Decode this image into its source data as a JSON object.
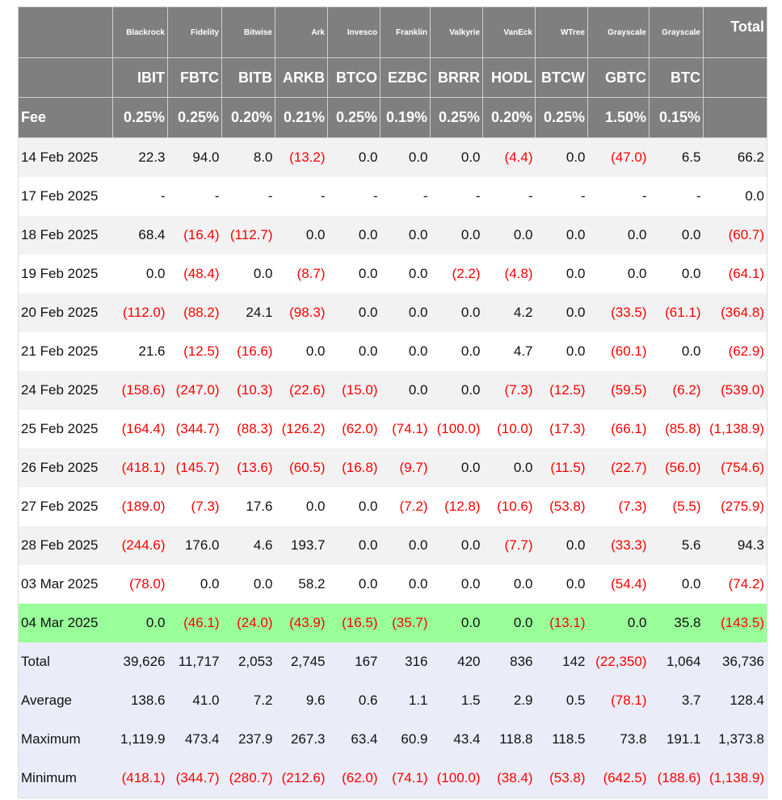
{
  "colors": {
    "header_bg": "#7f7f7f",
    "negative": "#ff0000",
    "highlight": "#99ff99",
    "summary_bg": "#eaedf8"
  },
  "issuers": [
    "Blackrock",
    "Fidelity",
    "Bitwise",
    "Ark",
    "Invesco",
    "Franklin",
    "Valkyrie",
    "VanEck",
    "WTree",
    "Grayscale",
    "Grayscale"
  ],
  "total_header": "Total",
  "tickers": [
    "IBIT",
    "FBTC",
    "BITB",
    "ARKB",
    "BTCO",
    "EZBC",
    "BRRR",
    "HODL",
    "BTCW",
    "GBTC",
    "BTC"
  ],
  "fee_label": "Fee",
  "fees": [
    "0.25%",
    "0.25%",
    "0.20%",
    "0.21%",
    "0.25%",
    "0.19%",
    "0.25%",
    "0.20%",
    "0.25%",
    "1.50%",
    "0.15%"
  ],
  "rows": [
    {
      "date": "14 Feb 2025",
      "values": [
        "22.3",
        "94.0",
        "8.0",
        "(13.2)",
        "0.0",
        "0.0",
        "0.0",
        "(4.4)",
        "0.0",
        "(47.0)",
        "6.5",
        "66.2"
      ]
    },
    {
      "date": "17 Feb 2025",
      "values": [
        "-",
        "-",
        "-",
        "-",
        "-",
        "-",
        "-",
        "-",
        "-",
        "-",
        "-",
        "0.0"
      ]
    },
    {
      "date": "18 Feb 2025",
      "values": [
        "68.4",
        "(16.4)",
        "(112.7)",
        "0.0",
        "0.0",
        "0.0",
        "0.0",
        "0.0",
        "0.0",
        "0.0",
        "0.0",
        "(60.7)"
      ]
    },
    {
      "date": "19 Feb 2025",
      "values": [
        "0.0",
        "(48.4)",
        "0.0",
        "(8.7)",
        "0.0",
        "0.0",
        "(2.2)",
        "(4.8)",
        "0.0",
        "0.0",
        "0.0",
        "(64.1)"
      ]
    },
    {
      "date": "20 Feb 2025",
      "values": [
        "(112.0)",
        "(88.2)",
        "24.1",
        "(98.3)",
        "0.0",
        "0.0",
        "0.0",
        "4.2",
        "0.0",
        "(33.5)",
        "(61.1)",
        "(364.8)"
      ]
    },
    {
      "date": "21 Feb 2025",
      "values": [
        "21.6",
        "(12.5)",
        "(16.6)",
        "0.0",
        "0.0",
        "0.0",
        "0.0",
        "4.7",
        "0.0",
        "(60.1)",
        "0.0",
        "(62.9)"
      ]
    },
    {
      "date": "24 Feb 2025",
      "values": [
        "(158.6)",
        "(247.0)",
        "(10.3)",
        "(22.6)",
        "(15.0)",
        "0.0",
        "0.0",
        "(7.3)",
        "(12.5)",
        "(59.5)",
        "(6.2)",
        "(539.0)"
      ]
    },
    {
      "date": "25 Feb 2025",
      "values": [
        "(164.4)",
        "(344.7)",
        "(88.3)",
        "(126.2)",
        "(62.0)",
        "(74.1)",
        "(100.0)",
        "(10.0)",
        "(17.3)",
        "(66.1)",
        "(85.8)",
        "(1,138.9)"
      ]
    },
    {
      "date": "26 Feb 2025",
      "values": [
        "(418.1)",
        "(145.7)",
        "(13.6)",
        "(60.5)",
        "(16.8)",
        "(9.7)",
        "0.0",
        "0.0",
        "(11.5)",
        "(22.7)",
        "(56.0)",
        "(754.6)"
      ]
    },
    {
      "date": "27 Feb 2025",
      "values": [
        "(189.0)",
        "(7.3)",
        "17.6",
        "0.0",
        "0.0",
        "(7.2)",
        "(12.8)",
        "(10.6)",
        "(53.8)",
        "(7.3)",
        "(5.5)",
        "(275.9)"
      ]
    },
    {
      "date": "28 Feb 2025",
      "values": [
        "(244.6)",
        "176.0",
        "4.6",
        "193.7",
        "0.0",
        "0.0",
        "0.0",
        "(7.7)",
        "0.0",
        "(33.3)",
        "5.6",
        "94.3"
      ]
    },
    {
      "date": "03 Mar 2025",
      "values": [
        "(78.0)",
        "0.0",
        "0.0",
        "58.2",
        "0.0",
        "0.0",
        "0.0",
        "0.0",
        "0.0",
        "(54.4)",
        "0.0",
        "(74.2)"
      ]
    },
    {
      "date": "04 Mar 2025",
      "highlight": true,
      "values": [
        "0.0",
        "(46.1)",
        "(24.0)",
        "(43.9)",
        "(16.5)",
        "(35.7)",
        "0.0",
        "0.0",
        "(13.1)",
        "0.0",
        "35.8",
        "(143.5)"
      ]
    }
  ],
  "summary": [
    {
      "label": "Total",
      "values": [
        "39,626",
        "11,717",
        "2,053",
        "2,745",
        "167",
        "316",
        "420",
        "836",
        "142",
        "(22,350)",
        "1,064",
        "36,736"
      ]
    },
    {
      "label": "Average",
      "values": [
        "138.6",
        "41.0",
        "7.2",
        "9.6",
        "0.6",
        "1.1",
        "1.5",
        "2.9",
        "0.5",
        "(78.1)",
        "3.7",
        "128.4"
      ]
    },
    {
      "label": "Maximum",
      "values": [
        "1,119.9",
        "473.4",
        "237.9",
        "267.3",
        "63.4",
        "60.9",
        "43.4",
        "118.8",
        "118.5",
        "73.8",
        "191.1",
        "1,373.8"
      ]
    },
    {
      "label": "Minimum",
      "values": [
        "(418.1)",
        "(344.7)",
        "(280.7)",
        "(212.6)",
        "(62.0)",
        "(74.1)",
        "(100.0)",
        "(38.4)",
        "(53.8)",
        "(642.5)",
        "(188.6)",
        "(1,138.9)"
      ]
    }
  ]
}
